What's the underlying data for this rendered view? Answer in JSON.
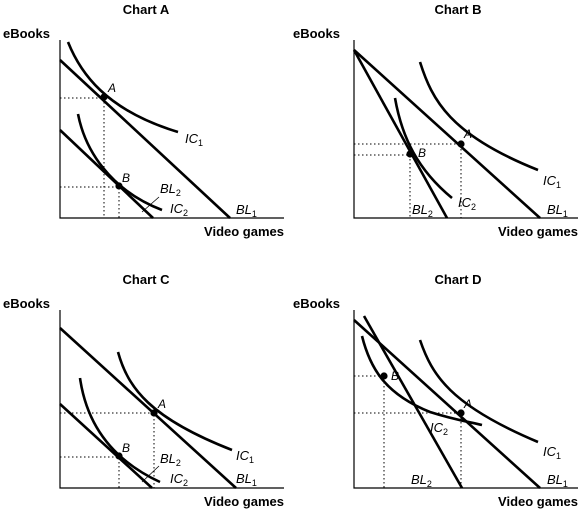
{
  "panels": [
    {
      "title": "Chart A",
      "y_label": "eBooks",
      "x_label": "Video games",
      "points": [
        {
          "name": "A"
        },
        {
          "name": "B"
        }
      ],
      "curves": {
        "ic1": {
          "base": "IC",
          "sub": "1"
        },
        "ic2": {
          "base": "IC",
          "sub": "2"
        },
        "bl1": {
          "base": "BL",
          "sub": "1"
        },
        "bl2": {
          "base": "BL",
          "sub": "2"
        }
      }
    },
    {
      "title": "Chart B",
      "y_label": "eBooks",
      "x_label": "Video games",
      "points": [
        {
          "name": "A"
        },
        {
          "name": "B"
        }
      ],
      "curves": {
        "ic1": {
          "base": "IC",
          "sub": "1"
        },
        "ic2": {
          "base": "IC",
          "sub": "2"
        },
        "bl1": {
          "base": "BL",
          "sub": "1"
        },
        "bl2": {
          "base": "BL",
          "sub": "2"
        }
      }
    },
    {
      "title": "Chart C",
      "y_label": "eBooks",
      "x_label": "Video games",
      "points": [
        {
          "name": "A"
        },
        {
          "name": "B"
        }
      ],
      "curves": {
        "ic1": {
          "base": "IC",
          "sub": "1"
        },
        "ic2": {
          "base": "IC",
          "sub": "2"
        },
        "bl1": {
          "base": "BL",
          "sub": "1"
        },
        "bl2": {
          "base": "BL",
          "sub": "2"
        }
      }
    },
    {
      "title": "Chart D",
      "y_label": "eBooks",
      "x_label": "Video games",
      "points": [
        {
          "name": "A"
        },
        {
          "name": "B"
        }
      ],
      "curves": {
        "ic1": {
          "base": "IC",
          "sub": "1"
        },
        "ic2": {
          "base": "IC",
          "sub": "2"
        },
        "bl1": {
          "base": "BL",
          "sub": "1"
        },
        "bl2": {
          "base": "BL",
          "sub": "2"
        }
      }
    }
  ]
}
